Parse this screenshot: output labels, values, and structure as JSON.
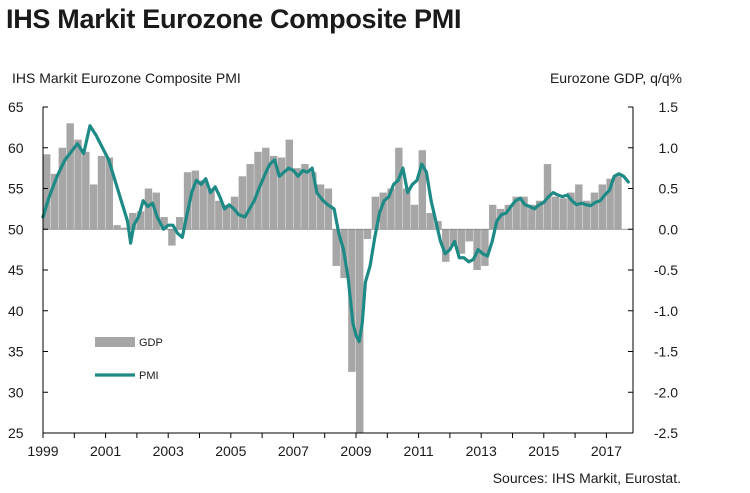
{
  "chart_data": {
    "type": "bar+line",
    "title": "IHS Markit Eurozone Composite PMI",
    "left_axis": {
      "label": "IHS Markit Eurozone Composite PMI",
      "range": [
        25,
        65
      ],
      "ticks": [
        "65",
        "60",
        "55",
        "50",
        "45",
        "40",
        "35",
        "30",
        "25"
      ]
    },
    "right_axis": {
      "label": "Eurozone GDP, q/q%",
      "range": [
        -2.5,
        1.5
      ],
      "ticks": [
        "1.5",
        "1.0",
        "0.5",
        "0.0",
        "-0.5",
        "-1.0",
        "-1.5",
        "-2.0",
        "-2.5"
      ]
    },
    "x_axis": {
      "range": [
        1999.0,
        2017.85
      ],
      "ticks": [
        "1999",
        "2001",
        "2003",
        "2005",
        "2007",
        "2009",
        "2011",
        "2013",
        "2015",
        "2017"
      ]
    },
    "legend": [
      {
        "name": "GDP",
        "type": "bar",
        "color": "#a6a6a6"
      },
      {
        "name": "PMI",
        "type": "line",
        "color": "#1e8a86"
      }
    ],
    "series": [
      {
        "name": "GDP",
        "axis": "right",
        "type": "bar",
        "color": "#a6a6a6",
        "x": [
          1999.0,
          1999.25,
          1999.5,
          1999.75,
          2000.0,
          2000.25,
          2000.5,
          2000.75,
          2001.0,
          2001.25,
          2001.5,
          2001.75,
          2002.0,
          2002.25,
          2002.5,
          2002.75,
          2003.0,
          2003.25,
          2003.5,
          2003.75,
          2004.0,
          2004.25,
          2004.5,
          2004.75,
          2005.0,
          2005.25,
          2005.5,
          2005.75,
          2006.0,
          2006.25,
          2006.5,
          2006.75,
          2007.0,
          2007.25,
          2007.5,
          2007.75,
          2008.0,
          2008.25,
          2008.5,
          2008.75,
          2009.0,
          2009.25,
          2009.5,
          2009.75,
          2010.0,
          2010.25,
          2010.5,
          2010.75,
          2011.0,
          2011.25,
          2011.5,
          2011.75,
          2012.0,
          2012.25,
          2012.5,
          2012.75,
          2013.0,
          2013.25,
          2013.5,
          2013.75,
          2014.0,
          2014.25,
          2014.5,
          2014.75,
          2015.0,
          2015.25,
          2015.5,
          2015.75,
          2016.0,
          2016.25,
          2016.5,
          2016.75,
          2017.0,
          2017.25
        ],
        "values": [
          0.92,
          0.68,
          1.0,
          1.3,
          1.1,
          0.95,
          0.55,
          0.9,
          0.88,
          0.05,
          0.02,
          0.2,
          0.22,
          0.5,
          0.45,
          0.15,
          -0.2,
          0.15,
          0.7,
          0.72,
          0.6,
          0.5,
          0.35,
          0.3,
          0.4,
          0.65,
          0.8,
          0.95,
          1.0,
          0.9,
          0.88,
          1.1,
          0.75,
          0.8,
          0.7,
          0.55,
          0.5,
          -0.45,
          -0.6,
          -1.75,
          -2.5,
          -0.12,
          0.4,
          0.45,
          0.5,
          1.0,
          0.5,
          0.3,
          0.97,
          0.2,
          0.1,
          -0.4,
          -0.2,
          -0.3,
          -0.15,
          -0.5,
          -0.45,
          0.3,
          0.25,
          0.3,
          0.4,
          0.4,
          0.3,
          0.35,
          0.8,
          0.4,
          0.38,
          0.45,
          0.55,
          0.35,
          0.45,
          0.55,
          0.62,
          0.65
        ]
      },
      {
        "name": "PMI",
        "axis": "left",
        "type": "line",
        "color": "#1e8a86",
        "x": [
          1999.0,
          1999.2,
          1999.45,
          1999.7,
          1999.9,
          2000.1,
          2000.3,
          2000.5,
          2000.7,
          2000.9,
          2001.1,
          2001.3,
          2001.5,
          2001.7,
          2001.8,
          2001.9,
          2002.05,
          2002.2,
          2002.35,
          2002.5,
          2002.65,
          2002.85,
          2003.0,
          2003.15,
          2003.3,
          2003.45,
          2003.6,
          2003.75,
          2003.9,
          2004.05,
          2004.2,
          2004.35,
          2004.5,
          2004.65,
          2004.8,
          2004.95,
          2005.1,
          2005.25,
          2005.45,
          2005.6,
          2005.75,
          2005.9,
          2006.1,
          2006.25,
          2006.4,
          2006.55,
          2006.7,
          2006.85,
          2007.0,
          2007.15,
          2007.3,
          2007.45,
          2007.6,
          2007.75,
          2007.95,
          2008.1,
          2008.3,
          2008.45,
          2008.6,
          2008.75,
          2008.9,
          2009.0,
          2009.1,
          2009.2,
          2009.3,
          2009.45,
          2009.6,
          2009.75,
          2009.9,
          2010.05,
          2010.2,
          2010.35,
          2010.5,
          2010.65,
          2010.8,
          2010.95,
          2011.1,
          2011.25,
          2011.4,
          2011.55,
          2011.7,
          2011.85,
          2012.0,
          2012.15,
          2012.3,
          2012.45,
          2012.6,
          2012.75,
          2012.9,
          2013.05,
          2013.2,
          2013.35,
          2013.5,
          2013.65,
          2013.8,
          2013.95,
          2014.1,
          2014.25,
          2014.4,
          2014.55,
          2014.7,
          2014.85,
          2015.0,
          2015.15,
          2015.3,
          2015.45,
          2015.6,
          2015.75,
          2015.9,
          2016.05,
          2016.2,
          2016.35,
          2016.5,
          2016.65,
          2016.8,
          2016.95,
          2017.1,
          2017.25,
          2017.4,
          2017.55,
          2017.7
        ],
        "values": [
          51.5,
          54.0,
          56.5,
          58.5,
          59.5,
          60.5,
          59.3,
          62.7,
          61.5,
          60.0,
          58.5,
          56.0,
          53.5,
          51.0,
          48.3,
          50.5,
          51.5,
          53.5,
          52.8,
          53.2,
          51.5,
          50.0,
          50.5,
          50.5,
          49.5,
          49.0,
          51.8,
          54.5,
          56.0,
          55.5,
          56.2,
          54.5,
          55.2,
          54.0,
          52.5,
          53.0,
          52.5,
          51.8,
          51.5,
          52.5,
          53.5,
          55.0,
          56.8,
          58.0,
          58.5,
          56.5,
          57.0,
          57.5,
          57.2,
          56.5,
          57.2,
          57.0,
          57.5,
          54.5,
          53.5,
          53.0,
          52.5,
          49.5,
          47.5,
          44.0,
          38.5,
          37.0,
          36.2,
          38.5,
          43.5,
          45.5,
          49.0,
          52.0,
          53.5,
          54.0,
          55.5,
          56.0,
          57.5,
          54.5,
          55.5,
          56.0,
          58.0,
          57.0,
          53.5,
          51.0,
          48.5,
          47.0,
          47.5,
          48.5,
          46.5,
          46.5,
          46.0,
          46.3,
          47.5,
          47.0,
          46.7,
          48.5,
          51.0,
          51.8,
          52.0,
          52.8,
          53.5,
          53.8,
          53.0,
          52.8,
          52.5,
          53.0,
          53.3,
          54.0,
          54.5,
          54.2,
          54.0,
          54.2,
          53.5,
          53.0,
          53.2,
          53.0,
          52.9,
          53.3,
          53.5,
          54.2,
          54.8,
          56.5,
          56.8,
          56.5,
          55.8
        ]
      }
    ]
  }
}
